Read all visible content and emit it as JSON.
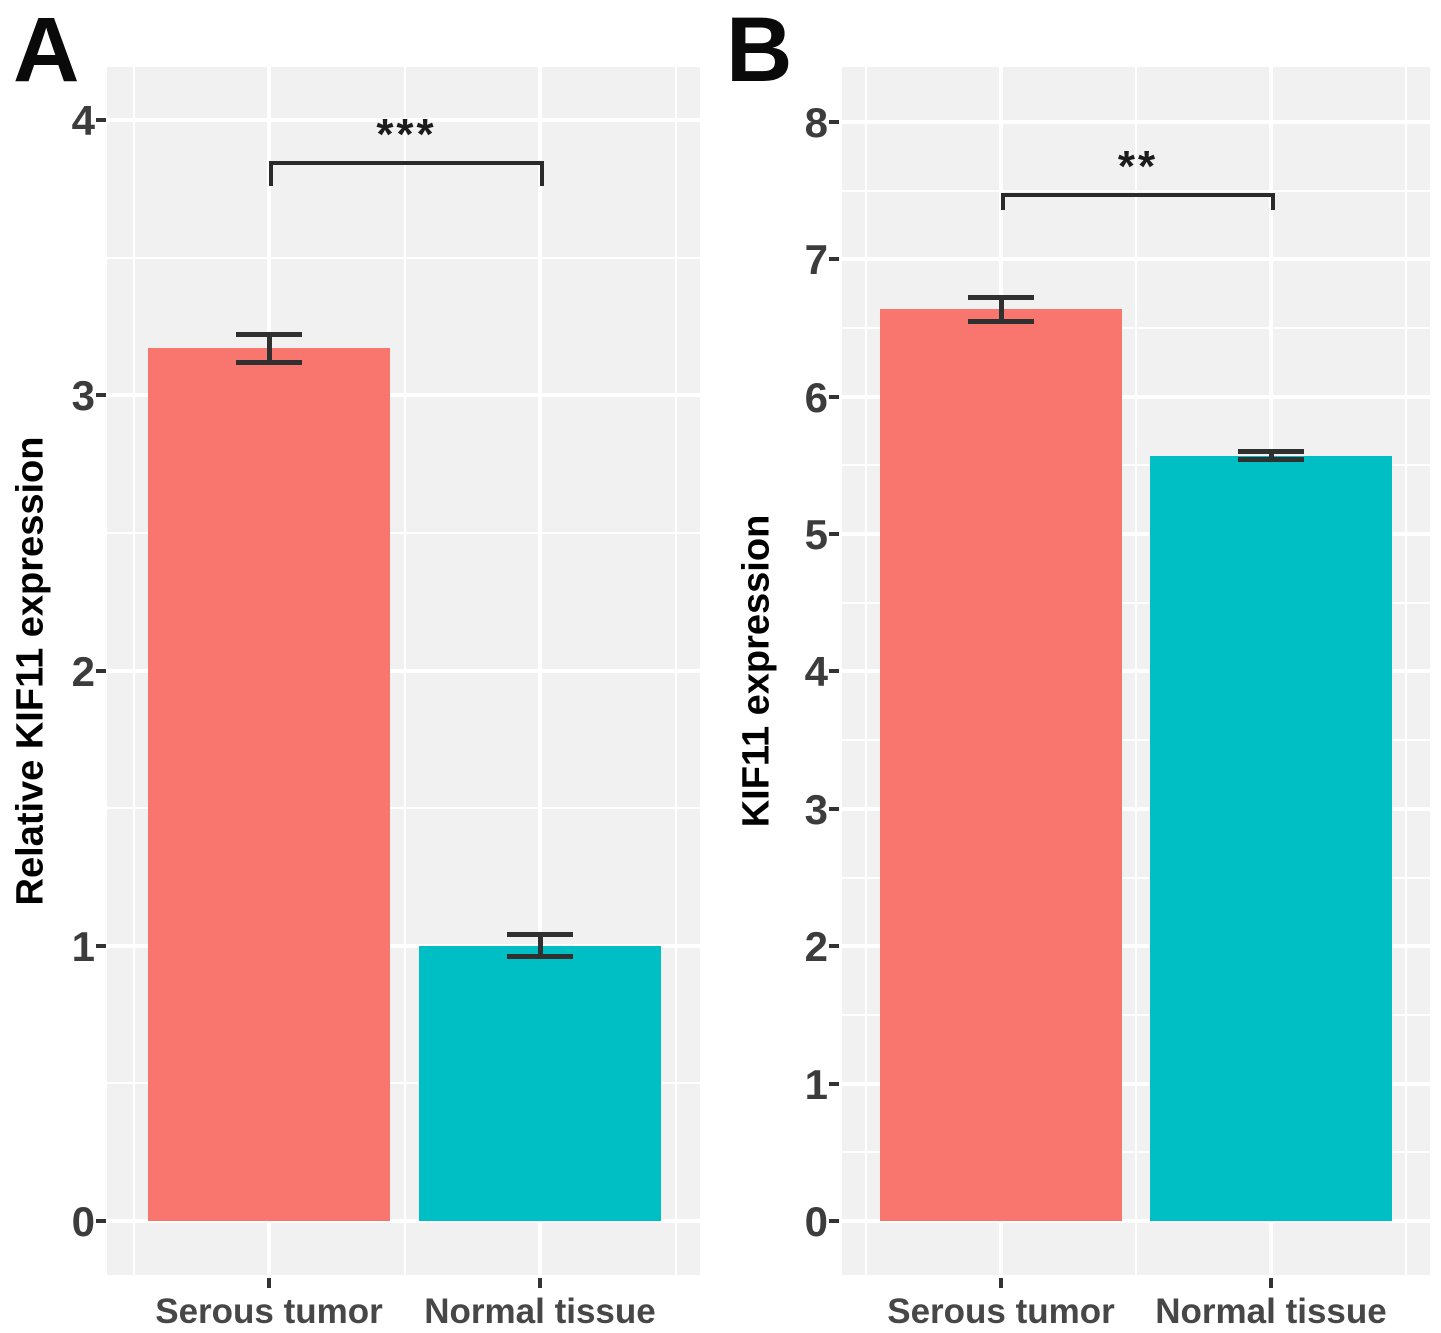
{
  "figure": {
    "background_color": "#ffffff",
    "panel_background_color": "#f1f1f1",
    "gridline_color": "#ffffff",
    "axis_text_color": "#3c3c3c",
    "axis_title_color": "#000000",
    "errorbar_color": "#303030"
  },
  "chart_data": [
    {
      "type": "bar",
      "panel_label": "A",
      "title": "",
      "xlabel": "",
      "ylabel": "Relative KIF11 expression",
      "categories": [
        "Serous tumor",
        "Normal tissue"
      ],
      "series": [
        {
          "name": "Relative KIF11 expression",
          "values": [
            3.17,
            1.0
          ]
        }
      ],
      "error_low": [
        3.12,
        0.96
      ],
      "error_high": [
        3.22,
        1.04
      ],
      "bar_colors": [
        "#F8766D",
        "#00BFC4"
      ],
      "yticks": [
        0,
        1,
        2,
        3,
        4
      ],
      "ylim": [
        -0.2,
        4.19
      ],
      "grid": true,
      "legend": false,
      "significance": {
        "label": "***",
        "between": [
          "Serous tumor",
          "Normal tissue"
        ],
        "bracket_y": 3.85,
        "bracket_drop_to": 3.76
      }
    },
    {
      "type": "bar",
      "panel_label": "B",
      "title": "",
      "xlabel": "",
      "ylabel": "KIF11 expression",
      "categories": [
        "Serous tumor",
        "Normal tissue"
      ],
      "series": [
        {
          "name": "KIF11 expression",
          "values": [
            6.64,
            5.57
          ]
        }
      ],
      "error_low": [
        6.55,
        5.54
      ],
      "error_high": [
        6.72,
        5.6
      ],
      "bar_colors": [
        "#F8766D",
        "#00BFC4"
      ],
      "yticks": [
        0,
        1,
        2,
        3,
        4,
        5,
        6,
        7,
        8
      ],
      "ylim": [
        -0.39,
        8.4
      ],
      "grid": true,
      "legend": false,
      "significance": {
        "label": "**",
        "between": [
          "Serous tumor",
          "Normal tissue"
        ],
        "bracket_y": 7.48,
        "bracket_drop_to": 7.36
      }
    }
  ]
}
